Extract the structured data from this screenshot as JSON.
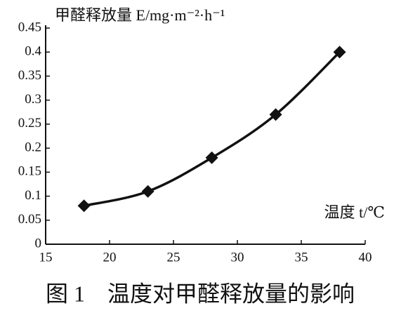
{
  "chart_data": {
    "type": "line",
    "y_label": "甲醛释放量 E/mg·m⁻²·h⁻¹",
    "x_label": "温度 t/℃",
    "caption": "图 1　温度对甲醛释放量的影响",
    "x": [
      18,
      23,
      28,
      33,
      38
    ],
    "series": [
      {
        "color": "#111111",
        "values": [
          0.08,
          0.11,
          0.18,
          0.27,
          0.4
        ]
      }
    ],
    "marker": "diamond",
    "xlim": [
      15,
      40
    ],
    "xticks": [
      15,
      20,
      25,
      30,
      35,
      40
    ],
    "ylim": [
      0,
      0.45
    ],
    "yticks": [
      0,
      0.05,
      0.1,
      0.15,
      0.2,
      0.25,
      0.3,
      0.35,
      0.4,
      0.45
    ],
    "grid": false
  }
}
